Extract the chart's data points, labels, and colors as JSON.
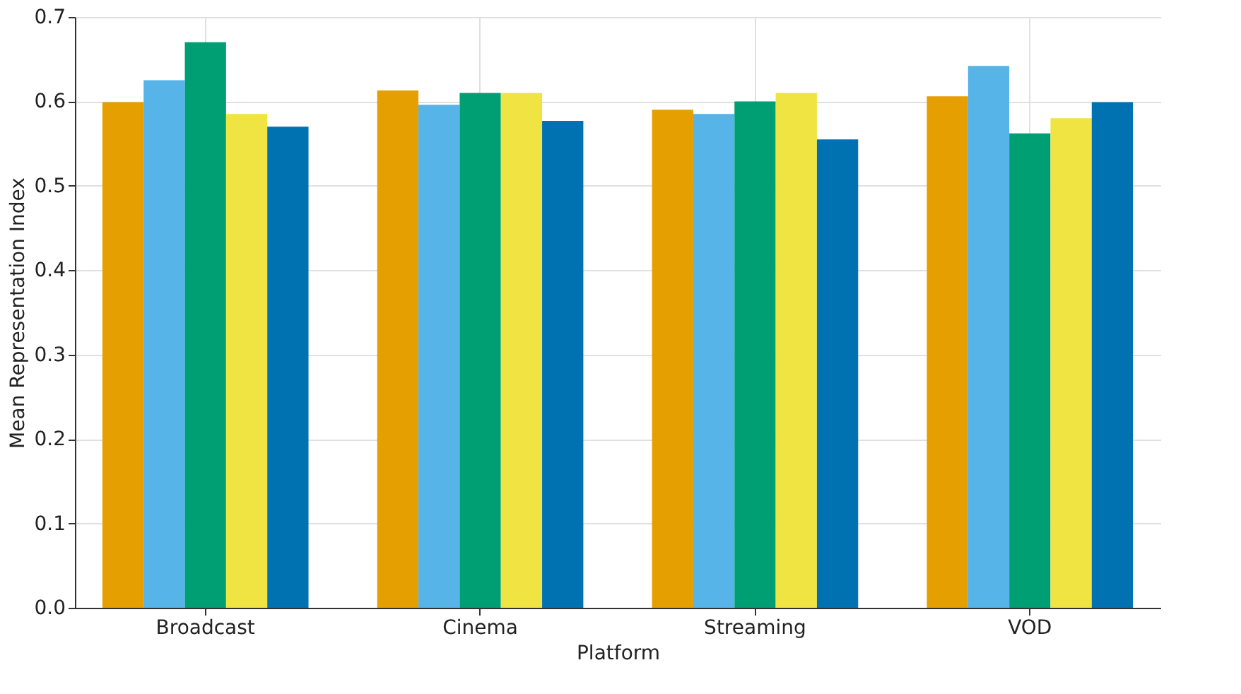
{
  "chart_data": {
    "type": "bar",
    "xlabel": "Platform",
    "ylabel": "Mean Representation Index",
    "categories": [
      "Broadcast",
      "Cinema",
      "Streaming",
      "VOD"
    ],
    "series": [
      {
        "color": "#e69f00",
        "values": [
          0.599,
          0.613,
          0.59,
          0.606
        ]
      },
      {
        "color": "#56b4e9",
        "values": [
          0.625,
          0.596,
          0.585,
          0.642
        ]
      },
      {
        "color": "#009e73",
        "values": [
          0.67,
          0.61,
          0.6,
          0.562
        ]
      },
      {
        "color": "#f0e442",
        "values": [
          0.585,
          0.61,
          0.61,
          0.58
        ]
      },
      {
        "color": "#0072b2",
        "values": [
          0.57,
          0.577,
          0.555,
          0.599
        ]
      }
    ],
    "ylim": [
      0,
      0.7
    ],
    "yticks": [
      {
        "value": 0,
        "label": "0.0"
      },
      0.1,
      0.2,
      0.3,
      0.4,
      0.5,
      0.6,
      0.7
    ],
    "grid": true
  }
}
